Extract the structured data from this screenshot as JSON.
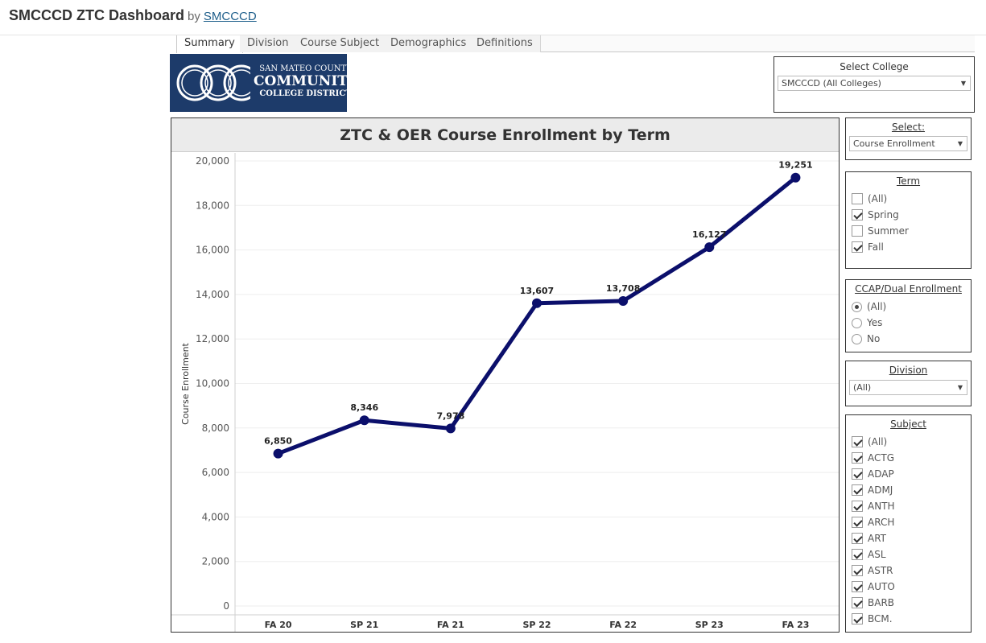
{
  "header": {
    "title": "SMCCCD ZTC Dashboard",
    "by": "by",
    "author": "SMCCCD"
  },
  "tabs": [
    {
      "label": "Summary",
      "active": true
    },
    {
      "label": "Division",
      "active": false
    },
    {
      "label": "Course Subject",
      "active": false
    },
    {
      "label": "Demographics",
      "active": false
    },
    {
      "label": "Definitions",
      "active": false
    }
  ],
  "logo": {
    "line1": "SAN MATEO COUNTY",
    "line2": "COMMUNITY",
    "line3": "COLLEGE DISTRICT"
  },
  "select_college": {
    "title": "Select College",
    "value": "SMCCCD (All Colleges)"
  },
  "select_measure": {
    "title": "Select:",
    "value": "Course Enrollment"
  },
  "term_filter": {
    "title": "Term",
    "options": [
      {
        "label": "(All)",
        "checked": false
      },
      {
        "label": "Spring",
        "checked": true
      },
      {
        "label": "Summer",
        "checked": false
      },
      {
        "label": "Fall",
        "checked": true
      }
    ]
  },
  "ccap_filter": {
    "title": "CCAP/Dual Enrollment",
    "options": [
      {
        "label": "(All)",
        "selected": true
      },
      {
        "label": "Yes",
        "selected": false
      },
      {
        "label": "No",
        "selected": false
      }
    ]
  },
  "division_filter": {
    "title": "Division",
    "value": "(All)"
  },
  "subject_filter": {
    "title": "Subject",
    "options": [
      {
        "label": "(All)",
        "checked": true
      },
      {
        "label": "ACTG",
        "checked": true
      },
      {
        "label": "ADAP",
        "checked": true
      },
      {
        "label": "ADMJ",
        "checked": true
      },
      {
        "label": "ANTH",
        "checked": true
      },
      {
        "label": "ARCH",
        "checked": true
      },
      {
        "label": "ART",
        "checked": true
      },
      {
        "label": "ASL",
        "checked": true
      },
      {
        "label": "ASTR",
        "checked": true
      },
      {
        "label": "AUTO",
        "checked": true
      },
      {
        "label": "BARB",
        "checked": true
      },
      {
        "label": "BCM.",
        "checked": true
      }
    ]
  },
  "colors": {
    "line": "#0b0f6b",
    "grid": "#eeeeee"
  },
  "chart_data": {
    "type": "line",
    "title": "ZTC & OER Course Enrollment by Term",
    "xlabel": "",
    "ylabel": "Course Enrollment",
    "categories": [
      "FA 20",
      "SP 21",
      "FA 21",
      "SP 22",
      "FA 22",
      "SP 23",
      "FA 23"
    ],
    "series": [
      {
        "values": [
          6850,
          8346,
          7978,
          13607,
          13708,
          16127,
          19251
        ]
      }
    ],
    "data_labels": [
      "6,850",
      "8,346",
      "7,978",
      "13,607",
      "13,708",
      "16,127",
      "19,251"
    ],
    "ylim": [
      0,
      20000
    ],
    "yticks": [
      0,
      2000,
      4000,
      6000,
      8000,
      10000,
      12000,
      14000,
      16000,
      18000,
      20000
    ],
    "ytick_labels": [
      "0",
      "2,000",
      "4,000",
      "6,000",
      "8,000",
      "10,000",
      "12,000",
      "14,000",
      "16,000",
      "18,000",
      "20,000"
    ],
    "grid": true,
    "legend": "none"
  }
}
